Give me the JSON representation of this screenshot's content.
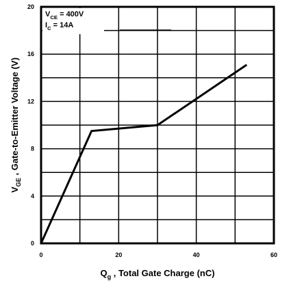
{
  "chart_data": {
    "type": "line",
    "x_label": {
      "symbol": "Q",
      "subscript": "g",
      "text": " , Total Gate Charge (nC)"
    },
    "y_label": {
      "symbol": "V",
      "subscript": "GE",
      "text": " , Gate-to-Emitter Voltage (V)"
    },
    "annotations": [
      {
        "symbol": "V",
        "subscript": "CE",
        "text": " = 400V"
      },
      {
        "symbol": "I",
        "subscript": "C",
        "text": "  = 14A"
      }
    ],
    "x": [
      0,
      13,
      30,
      53
    ],
    "series": [
      {
        "color": "#000000",
        "values": [
          0,
          9.5,
          10,
          15.1
        ]
      }
    ],
    "xlim": [
      0,
      60
    ],
    "xticks": [
      0,
      20,
      40,
      60
    ],
    "xminorticks": [
      10,
      30,
      50
    ],
    "ylim": [
      0,
      20
    ],
    "yticks": [
      0,
      4,
      8,
      12,
      16,
      20
    ],
    "yminorticks": [
      2,
      6,
      10,
      14,
      18
    ],
    "grid": true
  }
}
